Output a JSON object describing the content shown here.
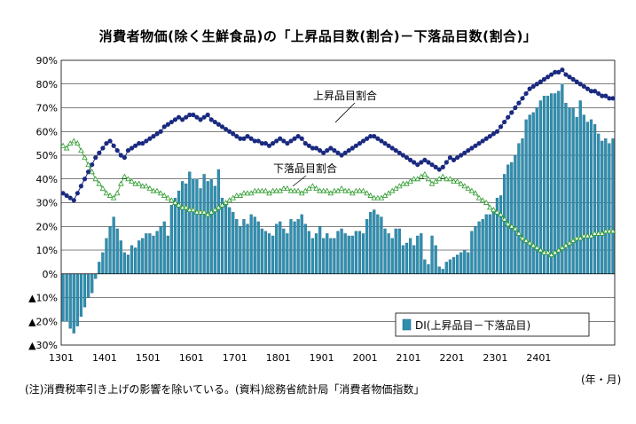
{
  "title": "消費者物価(除く生鮮食品)の「上昇品目数(割合)－下落品目数(割合)」",
  "note": "(注)消費税率引き上げの影響を除いている。(資料)総務省統計局「消費者物価指数」",
  "unit_label": "(年・月)",
  "colors": {
    "bar": "#2e8fb0",
    "rise_line": "#1a2a80",
    "fall_line": "#2a9a2a",
    "grid": "#000000"
  },
  "chart_data": {
    "type": "bar",
    "ylim": [
      -30,
      90
    ],
    "y_ticks": [
      90,
      80,
      70,
      60,
      50,
      40,
      30,
      20,
      10,
      0,
      -10,
      -20,
      -30
    ],
    "y_tick_labels": [
      "90%",
      "80%",
      "70%",
      "60%",
      "50%",
      "40%",
      "30%",
      "20%",
      "10%",
      "0%",
      "▲10%",
      "▲20%",
      "▲30%"
    ],
    "x_tick_labels": [
      "1301",
      "1401",
      "1501",
      "1601",
      "1701",
      "1801",
      "1901",
      "2001",
      "2101",
      "2201",
      "2301",
      "2401"
    ],
    "x_start": "2013-01",
    "annotations": [
      "上昇品目割合",
      "下落品目割合"
    ],
    "legend": {
      "label": "DI(上昇品目－下落品目)",
      "position": "bottom-right"
    },
    "series": [
      {
        "name": "DI(上昇品目－下落品目)",
        "type": "bar",
        "values": [
          -20,
          -20,
          -23,
          -25,
          -22,
          -18,
          -14,
          -10,
          -8,
          -2,
          5,
          9,
          15,
          20,
          24,
          19,
          14,
          9,
          8,
          12,
          11,
          14,
          15,
          17,
          17,
          16,
          18,
          20,
          22,
          16,
          29,
          32,
          35,
          39,
          38,
          43,
          40,
          40,
          36,
          42,
          39,
          40,
          37,
          44,
          32,
          30,
          28,
          26,
          23,
          20,
          23,
          21,
          25,
          24,
          22,
          19,
          18,
          17,
          16,
          21,
          22,
          19,
          17,
          23,
          22,
          23,
          25,
          21,
          18,
          15,
          17,
          20,
          15,
          17,
          15,
          15,
          18,
          19,
          17,
          16,
          16,
          18,
          18,
          17,
          23,
          26,
          27,
          25,
          24,
          19,
          17,
          15,
          19,
          19,
          12,
          13,
          15,
          12,
          16,
          17,
          6,
          4,
          16,
          12,
          3,
          2,
          5,
          6,
          7,
          8,
          9,
          10,
          9,
          18,
          20,
          22,
          23,
          25,
          25,
          27,
          32,
          33,
          42,
          46,
          47,
          50,
          55,
          57,
          65,
          67,
          68,
          70,
          73,
          75,
          75,
          76,
          76,
          77,
          80,
          72,
          70,
          70,
          66,
          73,
          67,
          64,
          65,
          63,
          59,
          56,
          57,
          55,
          57
        ]
      },
      {
        "name": "上昇品目割合",
        "type": "line",
        "values": [
          34,
          33,
          32,
          31,
          34,
          37,
          40,
          43,
          46,
          49,
          51,
          53,
          55,
          56,
          54,
          52,
          50,
          49,
          52,
          53,
          54,
          55,
          55,
          56,
          57,
          58,
          59,
          60,
          62,
          63,
          64,
          65,
          66,
          65,
          66,
          67,
          67,
          66,
          65,
          66,
          67,
          65,
          64,
          63,
          62,
          61,
          60,
          59,
          58,
          57,
          57,
          58,
          57,
          56,
          56,
          55,
          55,
          54,
          55,
          56,
          57,
          56,
          55,
          56,
          57,
          58,
          57,
          55,
          54,
          53,
          53,
          52,
          51,
          52,
          53,
          52,
          51,
          50,
          51,
          52,
          53,
          54,
          55,
          56,
          57,
          58,
          58,
          57,
          56,
          55,
          54,
          53,
          52,
          51,
          50,
          49,
          48,
          47,
          46,
          47,
          48,
          47,
          46,
          45,
          44,
          45,
          47,
          49,
          48,
          49,
          50,
          51,
          52,
          53,
          54,
          55,
          56,
          57,
          58,
          59,
          60,
          62,
          64,
          66,
          68,
          70,
          72,
          74,
          76,
          78,
          79,
          80,
          81,
          82,
          83,
          84,
          85,
          85,
          86,
          84,
          83,
          82,
          81,
          80,
          79,
          78,
          77,
          77,
          76,
          75,
          75,
          74,
          74
        ]
      },
      {
        "name": "下落品目割合",
        "type": "line",
        "values": [
          54,
          53,
          55,
          56,
          55,
          52,
          49,
          46,
          43,
          40,
          38,
          36,
          34,
          33,
          32,
          34,
          38,
          41,
          40,
          39,
          38,
          38,
          37,
          37,
          36,
          35,
          35,
          34,
          33,
          32,
          31,
          30,
          29,
          28,
          28,
          27,
          27,
          26,
          26,
          26,
          25,
          26,
          27,
          28,
          29,
          30,
          31,
          32,
          33,
          33,
          34,
          34,
          34,
          35,
          35,
          35,
          35,
          34,
          35,
          35,
          35,
          36,
          36,
          35,
          35,
          35,
          34,
          35,
          36,
          37,
          36,
          35,
          35,
          35,
          34,
          35,
          35,
          36,
          35,
          35,
          34,
          35,
          35,
          35,
          34,
          33,
          32,
          32,
          32,
          33,
          34,
          35,
          36,
          37,
          38,
          38,
          39,
          40,
          40,
          41,
          42,
          40,
          38,
          39,
          40,
          41,
          40,
          40,
          39,
          39,
          38,
          37,
          36,
          35,
          34,
          32,
          31,
          30,
          28,
          27,
          26,
          25,
          23,
          21,
          20,
          19,
          17,
          15,
          14,
          13,
          12,
          11,
          10,
          9,
          9,
          8,
          9,
          10,
          11,
          12,
          13,
          14,
          15,
          15,
          16,
          16,
          16,
          17,
          17,
          17,
          18,
          18,
          18
        ]
      }
    ]
  }
}
